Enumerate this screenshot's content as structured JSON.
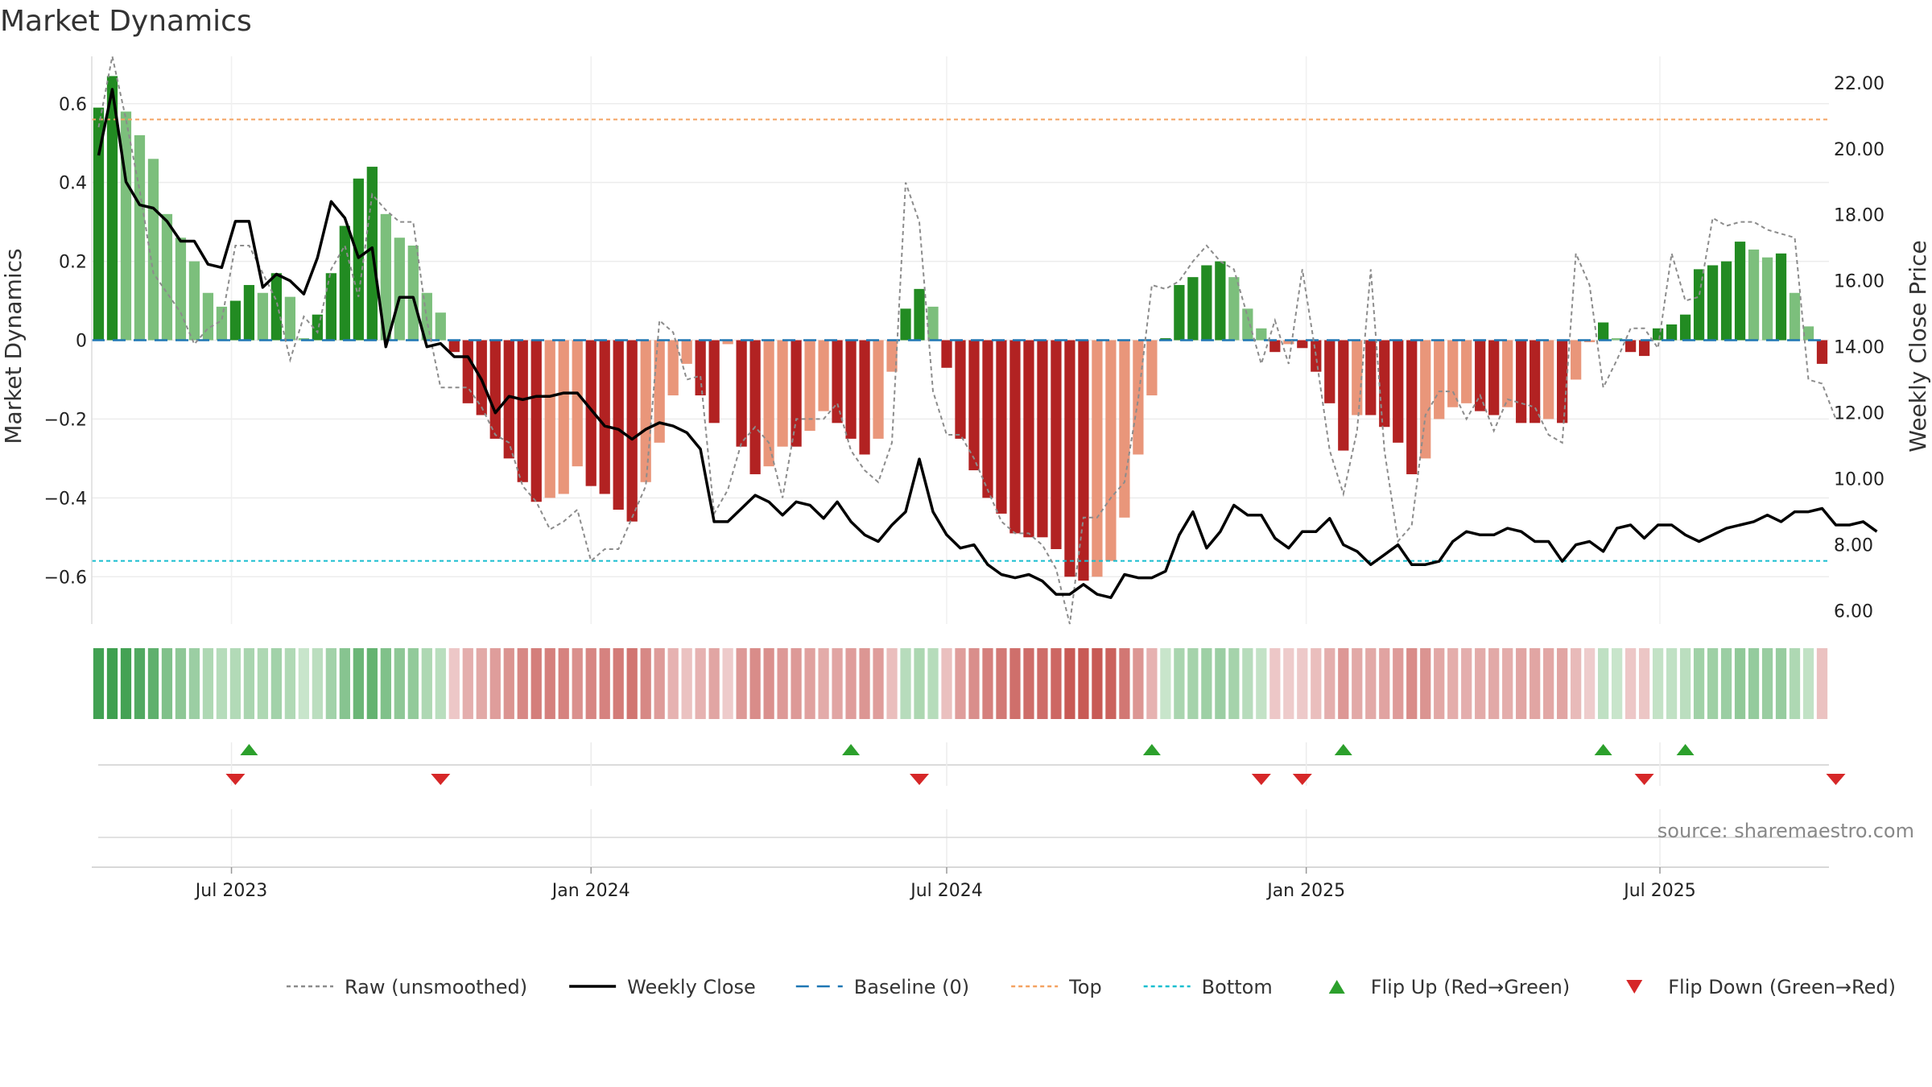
{
  "chart_data": {
    "type": "bar",
    "title": "Market Dynamics",
    "y_left_label": "Market Dynamics",
    "y_right_label": "Weekly Close Price",
    "y_left_ticks": [
      "0.6",
      "0.4",
      "0.2",
      "0",
      "−0.2",
      "−0.4",
      "−0.6"
    ],
    "y_left_tick_values": [
      0.6,
      0.4,
      0.2,
      0,
      -0.2,
      -0.4,
      -0.6
    ],
    "y_left_range": [
      -0.72,
      0.72
    ],
    "y_right_ticks": [
      "22.00",
      "20.00",
      "18.00",
      "16.00",
      "14.00",
      "12.00",
      "10.00",
      "8.00",
      "6.00"
    ],
    "y_right_tick_values": [
      22,
      20,
      18,
      16,
      14,
      12,
      10,
      8,
      6
    ],
    "y_right_range": [
      5.6,
      22.8
    ],
    "x_ticks": [
      "Jul 2023",
      "Jan 2024",
      "Jul 2024",
      "Jan 2025",
      "Jul 2025"
    ],
    "x_tick_dates": [
      "2023-07-01",
      "2024-01-01",
      "2024-07-01",
      "2025-01-01",
      "2025-07-01"
    ],
    "first_week": "2023-04-24",
    "top_threshold": 0.56,
    "bottom_threshold": -0.56,
    "baseline": 0,
    "series": [
      {
        "name": "Market Dynamics",
        "kind": "bar",
        "axis": "left",
        "values": [
          0.59,
          0.67,
          0.58,
          0.52,
          0.46,
          0.32,
          0.26,
          0.2,
          0.12,
          0.085,
          0.1,
          0.14,
          0.12,
          0.17,
          0.11,
          0.005,
          0.065,
          0.17,
          0.29,
          0.41,
          0.44,
          0.32,
          0.26,
          0.24,
          0.12,
          0.07,
          -0.03,
          -0.16,
          -0.19,
          -0.25,
          -0.3,
          -0.36,
          -0.41,
          -0.4,
          -0.39,
          -0.32,
          -0.37,
          -0.39,
          -0.43,
          -0.46,
          -0.36,
          -0.26,
          -0.14,
          -0.06,
          -0.14,
          -0.21,
          -0.01,
          -0.27,
          -0.34,
          -0.32,
          -0.27,
          -0.27,
          -0.23,
          -0.18,
          -0.21,
          -0.25,
          -0.29,
          -0.25,
          -0.08,
          0.08,
          0.13,
          0.085,
          -0.07,
          -0.25,
          -0.33,
          -0.4,
          -0.44,
          -0.49,
          -0.5,
          -0.5,
          -0.53,
          -0.6,
          -0.61,
          -0.6,
          -0.56,
          -0.45,
          -0.29,
          -0.14,
          0.005,
          0.14,
          0.16,
          0.19,
          0.2,
          0.16,
          0.08,
          0.03,
          -0.03,
          -0.01,
          -0.02,
          -0.08,
          -0.16,
          -0.28,
          -0.19,
          -0.19,
          -0.22,
          -0.26,
          -0.34,
          -0.3,
          -0.2,
          -0.17,
          -0.16,
          -0.18,
          -0.19,
          -0.17,
          -0.21,
          -0.21,
          -0.2,
          -0.21,
          -0.1,
          -0.005,
          0.045,
          0.005,
          -0.03,
          -0.04,
          0.03,
          0.04,
          0.065,
          0.18,
          0.19,
          0.2,
          0.25,
          0.23,
          0.21,
          0.22,
          0.12,
          0.035,
          -0.06
        ]
      },
      {
        "name": "Raw (unsmoothed)",
        "kind": "line",
        "axis": "left",
        "values": [
          0.54,
          0.72,
          0.56,
          0.38,
          0.17,
          0.12,
          0.07,
          -0.01,
          0.03,
          0.05,
          0.24,
          0.24,
          0.17,
          0.1,
          -0.05,
          0.06,
          0.02,
          0.18,
          0.24,
          0.11,
          0.37,
          0.33,
          0.3,
          0.3,
          0.05,
          -0.12,
          -0.12,
          -0.12,
          -0.17,
          -0.24,
          -0.26,
          -0.37,
          -0.41,
          -0.48,
          -0.46,
          -0.43,
          -0.56,
          -0.53,
          -0.53,
          -0.45,
          -0.37,
          0.05,
          0.02,
          -0.1,
          -0.09,
          -0.44,
          -0.38,
          -0.26,
          -0.22,
          -0.26,
          -0.4,
          -0.2,
          -0.2,
          -0.2,
          -0.16,
          -0.28,
          -0.33,
          -0.36,
          -0.26,
          0.4,
          0.3,
          -0.13,
          -0.24,
          -0.24,
          -0.3,
          -0.38,
          -0.46,
          -0.49,
          -0.49,
          -0.52,
          -0.58,
          -0.72,
          -0.45,
          -0.45,
          -0.4,
          -0.36,
          -0.15,
          0.14,
          0.13,
          0.15,
          0.2,
          0.24,
          0.2,
          0.18,
          0.06,
          -0.06,
          0.05,
          -0.06,
          0.18,
          -0.04,
          -0.28,
          -0.39,
          -0.23,
          0.18,
          -0.28,
          -0.51,
          -0.47,
          -0.19,
          -0.13,
          -0.13,
          -0.2,
          -0.14,
          -0.23,
          -0.15,
          -0.16,
          -0.17,
          -0.24,
          -0.26,
          0.22,
          0.14,
          -0.12,
          -0.05,
          0.03,
          0.03,
          -0.02,
          0.22,
          0.1,
          0.11,
          0.31,
          0.29,
          0.3,
          0.3,
          0.28,
          0.27,
          0.26,
          -0.1,
          -0.11,
          -0.2
        ]
      },
      {
        "name": "Weekly Close",
        "kind": "line",
        "axis": "right",
        "values": [
          19.8,
          21.8,
          19.0,
          18.3,
          18.2,
          17.8,
          17.2,
          17.2,
          16.5,
          16.4,
          17.8,
          17.8,
          15.8,
          16.2,
          16.0,
          15.6,
          16.7,
          18.4,
          17.9,
          16.7,
          17.0,
          14.0,
          15.5,
          15.5,
          14.0,
          14.1,
          13.7,
          13.7,
          13.0,
          12.0,
          12.5,
          12.4,
          12.5,
          12.5,
          12.6,
          12.6,
          12.1,
          11.6,
          11.5,
          11.2,
          11.5,
          11.7,
          11.6,
          11.4,
          10.9,
          8.7,
          8.7,
          9.1,
          9.5,
          9.3,
          8.9,
          9.3,
          9.2,
          8.8,
          9.3,
          8.7,
          8.3,
          8.1,
          8.6,
          9.0,
          10.6,
          9.0,
          8.3,
          7.9,
          8.0,
          7.4,
          7.1,
          7.0,
          7.1,
          6.9,
          6.5,
          6.5,
          6.8,
          6.5,
          6.4,
          7.1,
          7.0,
          7.0,
          7.2,
          8.3,
          9.0,
          7.9,
          8.4,
          9.2,
          8.9,
          8.9,
          8.2,
          7.9,
          8.4,
          8.4,
          8.8,
          8.0,
          7.8,
          7.4,
          7.7,
          8.0,
          7.4,
          7.4,
          7.5,
          8.1,
          8.4,
          8.3,
          8.3,
          8.5,
          8.4,
          8.1,
          8.1,
          7.5,
          8.0,
          8.1,
          7.8,
          8.5,
          8.6,
          8.2,
          8.6,
          8.6,
          8.3,
          8.1,
          8.3,
          8.5,
          8.6,
          8.7,
          8.9,
          8.7,
          9.0,
          9.0,
          9.1,
          8.6,
          8.6,
          8.7,
          8.4
        ]
      }
    ],
    "flip_up_dates": [
      "2023-07-10",
      "2024-05-13",
      "2024-10-14",
      "2025-01-20",
      "2025-06-02",
      "2025-07-14"
    ],
    "flip_down_dates": [
      "2023-07-03",
      "2023-10-16",
      "2024-06-17",
      "2024-12-09",
      "2024-12-30",
      "2025-06-23",
      "2025-09-29"
    ],
    "legend": [
      {
        "label": "Raw (unsmoothed)",
        "style": "dotted",
        "color": "#8c8c8c"
      },
      {
        "label": "Weekly Close",
        "style": "solid",
        "color": "#000000"
      },
      {
        "label": "Baseline (0)",
        "style": "dashed",
        "color": "#1f77b4"
      },
      {
        "label": "Top",
        "style": "dotted",
        "color": "#f4a261"
      },
      {
        "label": "Bottom",
        "style": "dotted",
        "color": "#17becf"
      },
      {
        "label": "Flip Up (Red→Green)",
        "style": "triangle-up",
        "color": "#2ca02c"
      },
      {
        "label": "Flip Down (Green→Red)",
        "style": "triangle-down",
        "color": "#d62728"
      }
    ],
    "legend_position": "bottom-center",
    "colors": {
      "strong_green": "#228b22",
      "light_green": "#7cbf7c",
      "strong_red": "#b22222",
      "light_red": "#e9967a"
    },
    "grid": true,
    "source": "source: sharemaestro.com"
  }
}
